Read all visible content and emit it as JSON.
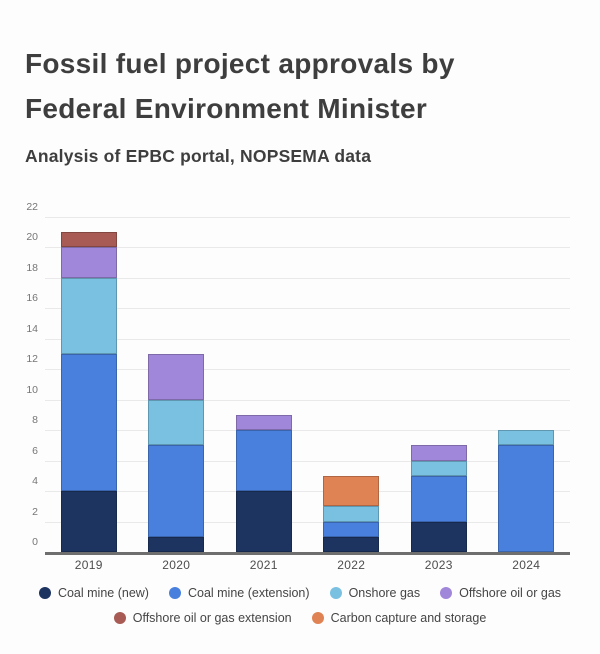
{
  "page": {
    "title_line1": "Fossil fuel project approvals by",
    "title_line2": "Federal Environment Minister",
    "subtitle": "Analysis of EPBC portal, NOPSEMA data"
  },
  "colors": {
    "background": "#fdfdfd",
    "title_text": "#3e3e3e",
    "y_axis_label": "#767676",
    "x_axis_label": "#4d4d4d",
    "gridline": "#e9e9e9",
    "axis_line": "#6e6e6e",
    "legend_text": "#454545"
  },
  "chart_data": {
    "type": "bar",
    "stacked": true,
    "title": "Fossil fuel project approvals by Federal Environment Minister",
    "subtitle": "Analysis of EPBC portal, NOPSEMA data",
    "categories": [
      "2019",
      "2020",
      "2021",
      "2022",
      "2023",
      "2024"
    ],
    "series": [
      {
        "name": "Coal mine (new)",
        "color": "#1d3461",
        "values": [
          4,
          1,
          4,
          1,
          2,
          0
        ]
      },
      {
        "name": "Coal mine (extension)",
        "color": "#4a80dd",
        "values": [
          9,
          6,
          4,
          1,
          3,
          7
        ]
      },
      {
        "name": "Onshore gas",
        "color": "#7ac1e1",
        "values": [
          5,
          3,
          0,
          1,
          1,
          1
        ]
      },
      {
        "name": "Offshore oil or gas",
        "color": "#a187d9",
        "values": [
          2,
          3,
          1,
          0,
          1,
          0
        ]
      },
      {
        "name": "Offshore oil or gas extension",
        "color": "#a85b54",
        "values": [
          1,
          0,
          0,
          0,
          0,
          0
        ]
      },
      {
        "name": "Carbon capture and storage",
        "color": "#e08354",
        "values": [
          0,
          0,
          0,
          2,
          0,
          0
        ]
      }
    ],
    "xlabel": "",
    "ylabel": "",
    "ylim": [
      0,
      22
    ],
    "ytick_step": 2,
    "yticks": [
      0,
      2,
      4,
      6,
      8,
      10,
      12,
      14,
      16,
      18,
      20,
      22
    ],
    "grid": true,
    "legend_position": "bottom",
    "legend_rows": [
      4,
      2
    ]
  }
}
